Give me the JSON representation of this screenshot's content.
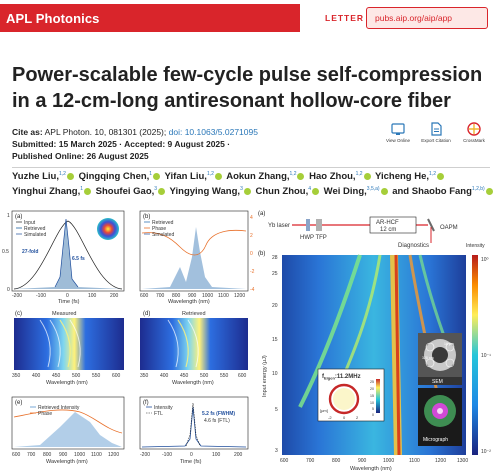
{
  "header": {
    "journal": "APL Photonics",
    "article_type": "LETTER",
    "url": "pubs.aip.org/aip/app"
  },
  "title": "Power-scalable few-cycle pulse self-compression in a 12-cm-long antiresonant hollow-core fiber",
  "meta": {
    "cite_label": "Cite as:",
    "cite_text": "APL Photon. 10, 081301 (2025);",
    "doi": "doi: 10.1063/5.0271095",
    "submitted": "Submitted: 15 March 2025 · Accepted: 9 August 2025 ·",
    "published": "Published Online: 26 August 2025"
  },
  "actions": [
    {
      "label": "View Online",
      "icon": "view-online-icon"
    },
    {
      "label": "Export Citation",
      "icon": "export-citation-icon"
    },
    {
      "label": "CrossMark",
      "icon": "crossmark-icon"
    }
  ],
  "authors": {
    "line1": [
      {
        "name": "Yuzhe Liu,",
        "aff": "1,2"
      },
      {
        "name": "Qingqing Chen,",
        "aff": "1"
      },
      {
        "name": "Yifan Liu,",
        "aff": "1,2"
      },
      {
        "name": "Aokun Zhang,",
        "aff": "1,2"
      },
      {
        "name": "Hao Zhou,",
        "aff": "1,2"
      },
      {
        "name": "Yicheng He,",
        "aff": "1,2"
      }
    ],
    "line2": [
      {
        "name": "Yinghui Zhang,",
        "aff": "1"
      },
      {
        "name": "Shoufei Gao,",
        "aff": "3"
      },
      {
        "name": "Yingying Wang,",
        "aff": "3"
      },
      {
        "name": "Chun Zhou,",
        "aff": "4"
      },
      {
        "name": "Wei Ding,",
        "aff": "3,5,a)"
      },
      {
        "name": "and Shaobo Fang",
        "aff": "1,2,b)"
      }
    ]
  },
  "figure": {
    "panel_a_left": {
      "label": "(a)",
      "legend": [
        "Input",
        "Retrieved",
        "Simulated"
      ],
      "annot_fold": "27-fold",
      "annot_fwhm": "6.5 fs",
      "ylabel": "Intensity (a.u.)",
      "xlabel": "Time (fs)",
      "xticks": [
        "-200",
        "-100",
        "0",
        "100",
        "200"
      ],
      "yticks": [
        "0",
        "0.5",
        "1"
      ]
    },
    "panel_b_left": {
      "label": "(b)",
      "legend": [
        "Retrieved",
        "Phase",
        "Simulated"
      ],
      "ylabel": "Intensity (a.u.)",
      "y2label": "Phase (rad)",
      "xlabel": "Wavelength (nm)",
      "xticks": [
        "600",
        "700",
        "800",
        "900",
        "1000",
        "1100",
        "1200"
      ],
      "y2ticks": [
        "4",
        "2",
        "0",
        "-2",
        "-4"
      ]
    },
    "panel_c_left": {
      "label": "(c)",
      "title": "Measured",
      "ylabel": "Insertion (mm)",
      "xlabel": "Wavelength (nm)",
      "xticks": [
        "350",
        "400",
        "450",
        "500",
        "550",
        "600"
      ]
    },
    "panel_d_left": {
      "label": "(d)",
      "title": "Retrieved",
      "xlabel": "Wavelength (nm)",
      "xticks": [
        "350",
        "400",
        "450",
        "500",
        "550",
        "600"
      ]
    },
    "panel_e_left": {
      "label": "(e)",
      "legend": [
        "Retrieved Intensity",
        "Phase"
      ],
      "ylabel": "Intensity (a.u.)",
      "y2label": "Phase (rad)",
      "xlabel": "Wavelength (nm)",
      "xticks": [
        "600",
        "700",
        "800",
        "900",
        "1000",
        "1100",
        "1200"
      ]
    },
    "panel_f_left": {
      "label": "(f)",
      "legend": [
        "Intensity",
        "FTL"
      ],
      "annot1": "5.2 fs (FWHM)",
      "annot2": "4.6 fs (FTL)",
      "xlabel": "Time (fs)",
      "xticks": [
        "-200",
        "-100",
        "0",
        "100",
        "200"
      ]
    },
    "panel_a_right": {
      "label": "(a)",
      "laser": "Yb laser",
      "hwp_tfp": "HWP TFP",
      "fiber": "AR-HCF",
      "fiber_len": "12 cm",
      "oapm": "OAPM",
      "diagnostics": "Diagnostics"
    },
    "panel_b_right": {
      "label": "(b)",
      "ylabel": "Input energy (μJ)",
      "xlabel": "Wavelength (nm)",
      "xticks": [
        "600",
        "700",
        "800",
        "900",
        "1000",
        "1100",
        "1200",
        "1300"
      ],
      "yticks": [
        "28",
        "25",
        "20",
        "15",
        "10",
        "5",
        "3"
      ],
      "colorbar_label": "Intensity",
      "colorbar_ticks": [
        "10⁰",
        "10⁻¹",
        "10⁻²"
      ],
      "inset_title": "f",
      "inset_sub": "Eigen",
      "inset_value": ":11.2MHz",
      "inset_ticks": [
        "-2",
        "0",
        "2"
      ],
      "inset_unit": "[μm]",
      "inset_cb_ticks": [
        "25",
        "20",
        "15",
        "10",
        "5",
        "0"
      ],
      "sem_label": "SEM",
      "sem_dims": [
        "328 nm",
        "16 μm"
      ],
      "micrograph_label": "Micrograph"
    }
  },
  "colors": {
    "brand": "#d9252b",
    "link": "#2a77b8",
    "orcid": "#a6ce39"
  }
}
